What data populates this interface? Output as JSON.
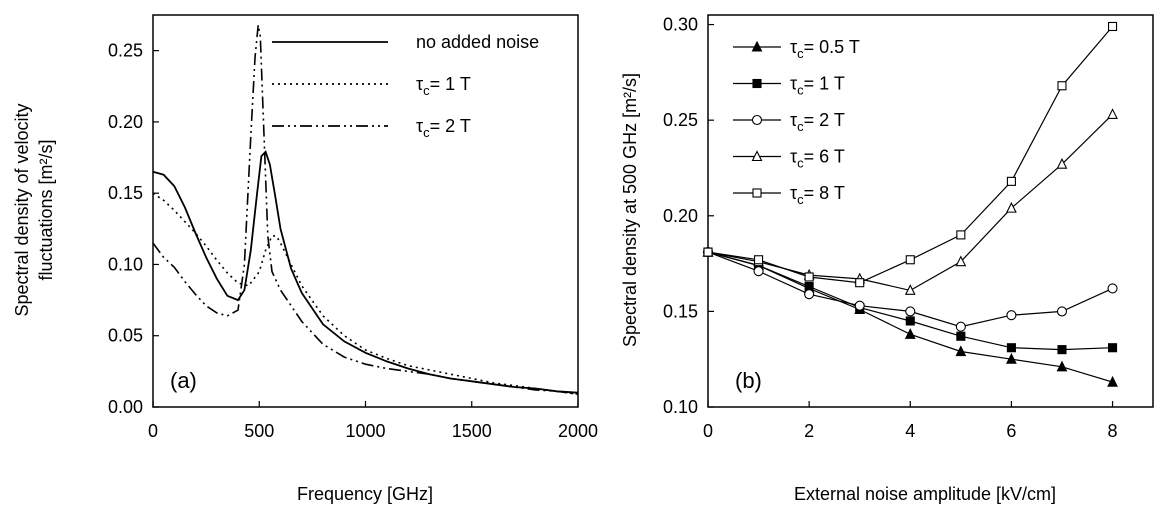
{
  "chart_data": [
    {
      "type": "line",
      "panel_label": "(a)",
      "xlabel": "Frequency [GHz]",
      "ylabel_line1": "Spectral density of velocity",
      "ylabel_line2": "fluctuations  [m²/s]",
      "xlim": [
        0,
        2000
      ],
      "ylim": [
        0,
        0.275
      ],
      "xticks": [
        "0",
        "500",
        "1000",
        "1500",
        "2000"
      ],
      "yticks": [
        "0.00",
        "0.05",
        "0.10",
        "0.15",
        "0.20",
        "0.25"
      ],
      "legend_position": "top-right",
      "series": [
        {
          "name": "no added noise",
          "style": "solid",
          "x": [
            0,
            50,
            100,
            150,
            200,
            250,
            300,
            350,
            400,
            430,
            460,
            490,
            510,
            530,
            550,
            575,
            600,
            650,
            700,
            800,
            900,
            1000,
            1100,
            1200,
            1300,
            1400,
            1500,
            1600,
            1700,
            1800,
            1900,
            2000
          ],
          "y": [
            0.165,
            0.163,
            0.155,
            0.14,
            0.122,
            0.105,
            0.09,
            0.078,
            0.075,
            0.082,
            0.11,
            0.15,
            0.176,
            0.179,
            0.17,
            0.148,
            0.125,
            0.097,
            0.08,
            0.058,
            0.046,
            0.038,
            0.032,
            0.027,
            0.023,
            0.02,
            0.018,
            0.016,
            0.014,
            0.013,
            0.011,
            0.01
          ]
        },
        {
          "name": "τc= 1 T",
          "style": "dotted",
          "x": [
            0,
            50,
            100,
            150,
            200,
            250,
            300,
            350,
            400,
            450,
            500,
            530,
            560,
            580,
            600,
            650,
            700,
            800,
            900,
            1000,
            1100,
            1200,
            1300,
            1400,
            1500,
            1600,
            1700,
            1800,
            1900,
            2000
          ],
          "y": [
            0.15,
            0.145,
            0.138,
            0.13,
            0.122,
            0.113,
            0.103,
            0.094,
            0.087,
            0.085,
            0.095,
            0.11,
            0.12,
            0.12,
            0.115,
            0.1,
            0.085,
            0.064,
            0.05,
            0.04,
            0.034,
            0.029,
            0.026,
            0.023,
            0.02,
            0.017,
            0.015,
            0.013,
            0.011,
            0.009
          ]
        },
        {
          "name": "τc= 2 T",
          "style": "dashdot",
          "x": [
            0,
            50,
            100,
            150,
            200,
            250,
            300,
            350,
            400,
            430,
            460,
            480,
            495,
            505,
            520,
            540,
            560,
            600,
            700,
            800,
            900,
            1000,
            1100,
            1200,
            1300,
            1400,
            1500,
            1600,
            1700,
            1800,
            1900,
            2000
          ],
          "y": [
            0.115,
            0.105,
            0.098,
            0.088,
            0.079,
            0.071,
            0.066,
            0.064,
            0.068,
            0.1,
            0.19,
            0.245,
            0.268,
            0.26,
            0.2,
            0.12,
            0.095,
            0.082,
            0.06,
            0.044,
            0.035,
            0.03,
            0.027,
            0.025,
            0.023,
            0.02,
            0.018,
            0.016,
            0.014,
            0.012,
            0.011,
            0.009
          ]
        }
      ]
    },
    {
      "type": "line",
      "panel_label": "(b)",
      "xlabel": "External noise amplitude [kV/cm]",
      "ylabel": "Spectral density at 500 GHz [m²/s]",
      "xlim": [
        0,
        8.8
      ],
      "ylim": [
        0.1,
        0.305
      ],
      "xticks": [
        "0",
        "2",
        "4",
        "6",
        "8"
      ],
      "yticks": [
        "0.10",
        "0.15",
        "0.20",
        "0.25",
        "0.30"
      ],
      "legend_position": "top-left",
      "x": [
        0,
        1,
        2,
        3,
        4,
        5,
        6,
        7,
        8
      ],
      "series": [
        {
          "name": "τc= 0.5 T",
          "marker": "filled-triangle",
          "values": [
            0.181,
            0.174,
            0.162,
            0.151,
            0.138,
            0.129,
            0.125,
            0.121,
            0.113
          ]
        },
        {
          "name": "τc= 1 T",
          "marker": "filled-square",
          "values": [
            0.181,
            0.174,
            0.163,
            0.152,
            0.145,
            0.137,
            0.131,
            0.13,
            0.131
          ]
        },
        {
          "name": "τc= 2 T",
          "marker": "open-circle",
          "values": [
            0.181,
            0.171,
            0.159,
            0.153,
            0.15,
            0.142,
            0.148,
            0.15,
            0.162
          ]
        },
        {
          "name": "τc= 6 T",
          "marker": "open-triangle",
          "values": [
            0.181,
            0.176,
            0.169,
            0.167,
            0.161,
            0.176,
            0.204,
            0.227,
            0.253
          ]
        },
        {
          "name": "τc= 8 T",
          "marker": "open-square",
          "values": [
            0.181,
            0.177,
            0.168,
            0.165,
            0.177,
            0.19,
            0.218,
            0.268,
            0.299
          ]
        }
      ]
    }
  ]
}
